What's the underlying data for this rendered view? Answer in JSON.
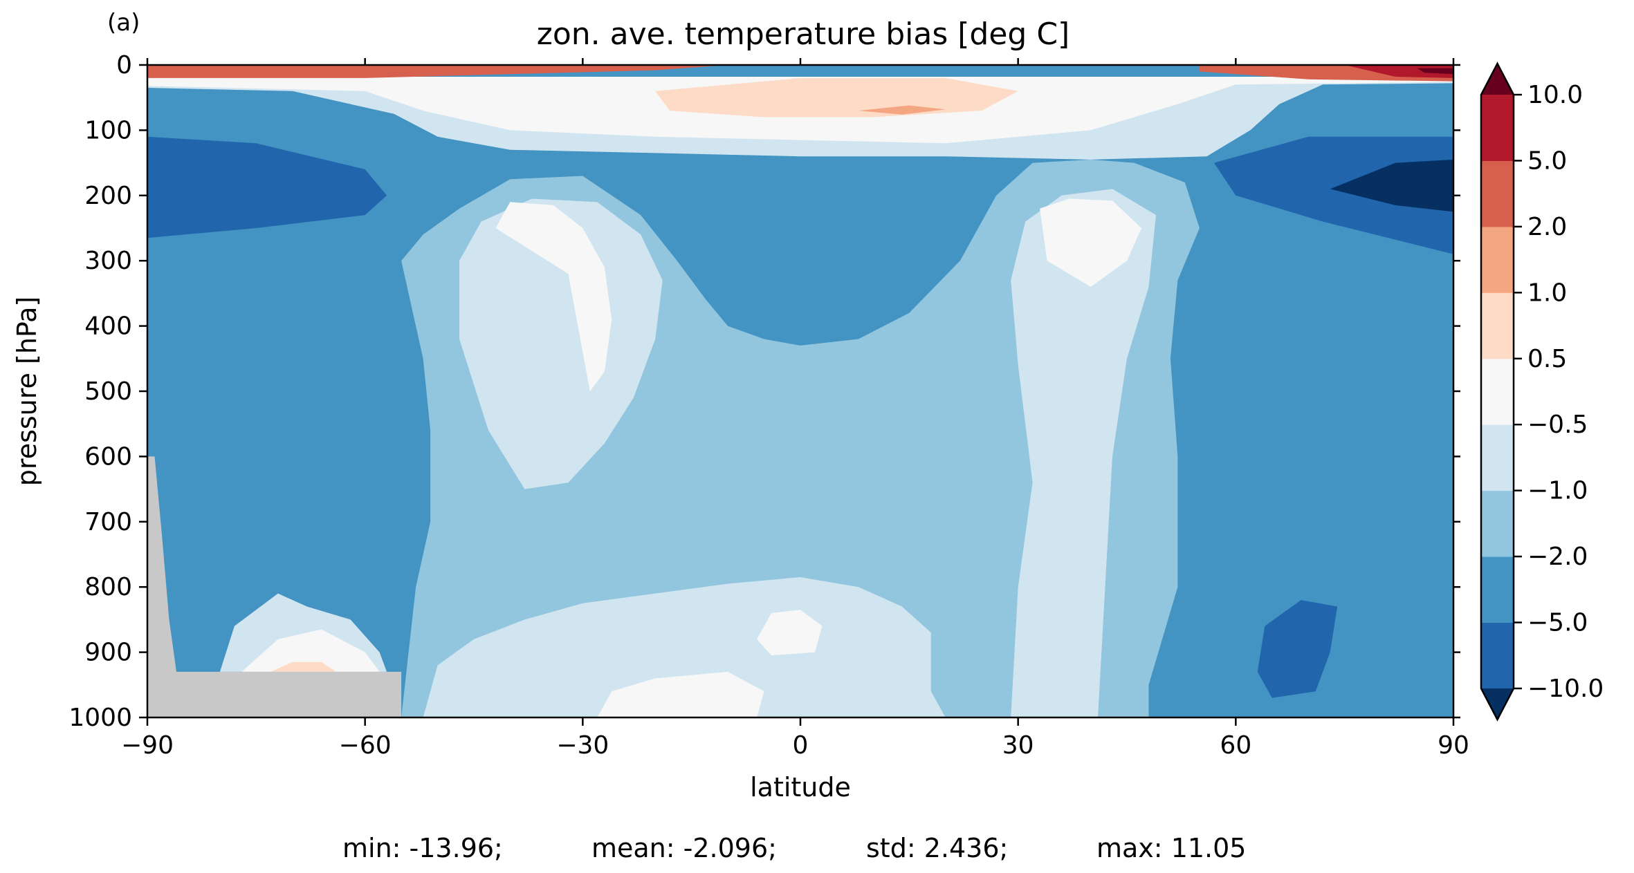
{
  "panel_label": "(a)",
  "chart_data": {
    "type": "contour",
    "title": "zon. ave. temperature bias [deg C]",
    "xlabel": "latitude",
    "ylabel": "pressure [hPa]",
    "xlim": [
      -90,
      90
    ],
    "ylim": [
      1000,
      0
    ],
    "x_ticks": [
      -90,
      -60,
      -30,
      0,
      30,
      60,
      90
    ],
    "x_tick_labels": [
      "−90",
      "−60",
      "−30",
      "0",
      "30",
      "60",
      "90"
    ],
    "y_ticks": [
      0,
      100,
      200,
      300,
      400,
      500,
      600,
      700,
      800,
      900,
      1000
    ],
    "y_tick_labels": [
      "0",
      "100",
      "200",
      "300",
      "400",
      "500",
      "600",
      "700",
      "800",
      "900",
      "1000"
    ],
    "grid": false,
    "colorbar": {
      "placement": "right",
      "levels": [
        -10.0,
        -5.0,
        -2.0,
        -1.0,
        -0.5,
        0.5,
        1.0,
        2.0,
        5.0,
        10.0
      ],
      "labels": [
        "−10.0",
        "−5.0",
        "−2.0",
        "−1.0",
        "−0.5",
        "0.5",
        "1.0",
        "2.0",
        "5.0",
        "10.0"
      ],
      "extend": "both",
      "under_color": "#053061",
      "over_color": "#67001f",
      "colors": [
        "#2166ac",
        "#4393c3",
        "#92c5de",
        "#d1e5f0",
        "#f7f7f7",
        "#fddbc7",
        "#f4a582",
        "#d6604d",
        "#b2182b"
      ]
    },
    "masked_color": "#c8c8c8",
    "regions": [
      {
        "name": "background",
        "value": -3.0,
        "pts": [
          [
            -90,
            0
          ],
          [
            90,
            0
          ],
          [
            90,
            1000
          ],
          [
            -90,
            1000
          ]
        ]
      },
      {
        "name": "subtropics-sh",
        "value": -1.5,
        "pts": [
          [
            -55,
            1000
          ],
          [
            -54,
            900
          ],
          [
            -53,
            800
          ],
          [
            -51,
            700
          ],
          [
            -51,
            560
          ],
          [
            -52,
            450
          ],
          [
            -55,
            300
          ],
          [
            -52,
            260
          ],
          [
            -47,
            220
          ],
          [
            -40,
            175
          ],
          [
            -30,
            170
          ],
          [
            -22,
            230
          ],
          [
            -17,
            300
          ],
          [
            -13,
            360
          ],
          [
            -10,
            400
          ],
          [
            -5,
            420
          ],
          [
            0,
            430
          ],
          [
            8,
            420
          ],
          [
            15,
            380
          ],
          [
            22,
            300
          ],
          [
            27,
            200
          ],
          [
            32,
            150
          ],
          [
            40,
            145
          ],
          [
            46,
            150
          ],
          [
            53,
            180
          ],
          [
            55,
            250
          ],
          [
            52,
            330
          ],
          [
            51,
            450
          ],
          [
            52,
            600
          ],
          [
            52,
            800
          ],
          [
            48,
            950
          ],
          [
            48,
            1000
          ]
        ]
      },
      {
        "name": "cool-core-sh",
        "value": -0.75,
        "pts": [
          [
            -38,
            650
          ],
          [
            -43,
            560
          ],
          [
            -47,
            420
          ],
          [
            -47,
            300
          ],
          [
            -44,
            240
          ],
          [
            -37,
            205
          ],
          [
            -28,
            210
          ],
          [
            -22,
            260
          ],
          [
            -19,
            330
          ],
          [
            -20,
            420
          ],
          [
            -23,
            510
          ],
          [
            -27,
            580
          ],
          [
            -32,
            640
          ]
        ]
      },
      {
        "name": "cool-core-nh",
        "value": -0.75,
        "pts": [
          [
            29,
            1000
          ],
          [
            30,
            800
          ],
          [
            32,
            640
          ],
          [
            30,
            460
          ],
          [
            29,
            330
          ],
          [
            31,
            240
          ],
          [
            36,
            200
          ],
          [
            43,
            190
          ],
          [
            49,
            230
          ],
          [
            48,
            340
          ],
          [
            45,
            450
          ],
          [
            43,
            600
          ],
          [
            42,
            800
          ],
          [
            41,
            1000
          ]
        ]
      },
      {
        "name": "near-zero-sh",
        "value": 0.0,
        "pts": [
          [
            -32,
            320
          ],
          [
            -42,
            250
          ],
          [
            -40,
            210
          ],
          [
            -34,
            215
          ],
          [
            -30,
            250
          ],
          [
            -27,
            310
          ],
          [
            -26,
            390
          ],
          [
            -27,
            470
          ],
          [
            -29,
            500
          ]
        ]
      },
      {
        "name": "near-zero-nh",
        "value": 0.0,
        "pts": [
          [
            34,
            300
          ],
          [
            33,
            220
          ],
          [
            37,
            205
          ],
          [
            43,
            208
          ],
          [
            47,
            250
          ],
          [
            45,
            300
          ],
          [
            40,
            340
          ]
        ]
      },
      {
        "name": "lower-sh",
        "value": -0.75,
        "pts": [
          [
            -52,
            1000
          ],
          [
            -50,
            920
          ],
          [
            -45,
            880
          ],
          [
            -38,
            850
          ],
          [
            -30,
            825
          ],
          [
            -20,
            810
          ],
          [
            -10,
            795
          ],
          [
            0,
            785
          ],
          [
            8,
            800
          ],
          [
            14,
            830
          ],
          [
            18,
            870
          ],
          [
            18,
            960
          ],
          [
            20,
            1000
          ]
        ]
      },
      {
        "name": "lower-warm",
        "value": 0.0,
        "pts": [
          [
            -28,
            1000
          ],
          [
            -26,
            960
          ],
          [
            -20,
            940
          ],
          [
            -10,
            930
          ],
          [
            -5,
            960
          ],
          [
            -6,
            1000
          ]
        ]
      },
      {
        "name": "lower-warm-2",
        "value": 0.0,
        "pts": [
          [
            -6,
            880
          ],
          [
            -4,
            840
          ],
          [
            0,
            835
          ],
          [
            3,
            860
          ],
          [
            2,
            900
          ],
          [
            -4,
            905
          ]
        ]
      },
      {
        "name": "sh-lower-pocket",
        "value": -0.75,
        "pts": [
          [
            -80,
            930
          ],
          [
            -78,
            860
          ],
          [
            -72,
            810
          ],
          [
            -68,
            830
          ],
          [
            -62,
            850
          ],
          [
            -58,
            900
          ],
          [
            -57,
            930
          ]
        ]
      },
      {
        "name": "sh-lower-pocket-2",
        "value": 0.0,
        "pts": [
          [
            -77,
            930
          ],
          [
            -72,
            880
          ],
          [
            -66,
            865
          ],
          [
            -60,
            900
          ],
          [
            -58,
            930
          ]
        ]
      },
      {
        "name": "sh-lower-pocket-3",
        "value": 0.75,
        "pts": [
          [
            -73,
            930
          ],
          [
            -70,
            915
          ],
          [
            -66,
            915
          ],
          [
            -64,
            930
          ]
        ]
      },
      {
        "name": "strat-band-1",
        "value": -0.75,
        "pts": [
          [
            -90,
            20
          ],
          [
            90,
            20
          ],
          [
            90,
            28
          ],
          [
            72,
            30
          ],
          [
            66,
            60
          ],
          [
            62,
            100
          ],
          [
            56,
            140
          ],
          [
            40,
            145
          ],
          [
            20,
            140
          ],
          [
            0,
            140
          ],
          [
            -20,
            135
          ],
          [
            -40,
            130
          ],
          [
            -50,
            110
          ],
          [
            -56,
            75
          ],
          [
            -70,
            40
          ],
          [
            -90,
            35
          ]
        ]
      },
      {
        "name": "strat-band-2",
        "value": 0.0,
        "pts": [
          [
            -90,
            18
          ],
          [
            90,
            18
          ],
          [
            90,
            26
          ],
          [
            60,
            30
          ],
          [
            52,
            60
          ],
          [
            40,
            100
          ],
          [
            20,
            120
          ],
          [
            0,
            115
          ],
          [
            -20,
            110
          ],
          [
            -40,
            100
          ],
          [
            -52,
            70
          ],
          [
            -60,
            40
          ],
          [
            -90,
            32
          ]
        ]
      },
      {
        "name": "strat-band-3",
        "value": 0.75,
        "pts": [
          [
            -20,
            40
          ],
          [
            0,
            20
          ],
          [
            20,
            20
          ],
          [
            30,
            40
          ],
          [
            25,
            70
          ],
          [
            10,
            80
          ],
          [
            -5,
            80
          ],
          [
            -18,
            70
          ]
        ]
      },
      {
        "name": "strat-warm-nh",
        "value": 1.5,
        "pts": [
          [
            8,
            70
          ],
          [
            15,
            62
          ],
          [
            20,
            68
          ],
          [
            14,
            76
          ]
        ]
      },
      {
        "name": "strat-top-sh",
        "value": 3.5,
        "pts": [
          [
            -90,
            0
          ],
          [
            -10,
            0
          ],
          [
            -20,
            8
          ],
          [
            -60,
            20
          ],
          [
            -90,
            20
          ]
        ]
      },
      {
        "name": "strat-top-nh",
        "value": 3.5,
        "pts": [
          [
            55,
            0
          ],
          [
            90,
            0
          ],
          [
            90,
            25
          ],
          [
            70,
            22
          ],
          [
            55,
            10
          ]
        ]
      },
      {
        "name": "strat-top-nh-2",
        "value": 7.5,
        "pts": [
          [
            75,
            0
          ],
          [
            90,
            0
          ],
          [
            90,
            20
          ],
          [
            82,
            18
          ]
        ]
      },
      {
        "name": "strat-top-nh-3",
        "value": 12.0,
        "pts": [
          [
            85,
            5
          ],
          [
            90,
            5
          ],
          [
            90,
            14
          ],
          [
            86,
            12
          ]
        ]
      },
      {
        "name": "polar-sh-cold",
        "value": -7.5,
        "pts": [
          [
            -90,
            110
          ],
          [
            -75,
            120
          ],
          [
            -60,
            160
          ],
          [
            -57,
            200
          ],
          [
            -60,
            230
          ],
          [
            -75,
            250
          ],
          [
            -90,
            265
          ]
        ]
      },
      {
        "name": "polar-nh-cold",
        "value": -7.5,
        "pts": [
          [
            90,
            110
          ],
          [
            70,
            110
          ],
          [
            57,
            150
          ],
          [
            60,
            200
          ],
          [
            72,
            240
          ],
          [
            90,
            290
          ]
        ]
      },
      {
        "name": "polar-nh-core",
        "value": -12.0,
        "pts": [
          [
            90,
            145
          ],
          [
            82,
            150
          ],
          [
            73,
            190
          ],
          [
            82,
            215
          ],
          [
            90,
            225
          ]
        ]
      },
      {
        "name": "nh-lower-pocket",
        "value": -7.5,
        "pts": [
          [
            64,
            860
          ],
          [
            69,
            820
          ],
          [
            74,
            830
          ],
          [
            73,
            900
          ],
          [
            71,
            960
          ],
          [
            65,
            970
          ],
          [
            63,
            930
          ]
        ]
      }
    ],
    "masked_region": [
      [
        -90,
        600
      ],
      [
        -89,
        600
      ],
      [
        -88,
        720
      ],
      [
        -87,
        850
      ],
      [
        -86,
        930
      ],
      [
        -55,
        930
      ],
      [
        -55,
        1000
      ],
      [
        -90,
        1000
      ]
    ],
    "stats": {
      "min": "-13.96",
      "mean": "-2.096",
      "std": "2.436",
      "max": "11.05"
    },
    "stats_labels": {
      "min": "min: ",
      "mean": "mean: ",
      "std": "std: ",
      "max": "max: "
    }
  }
}
